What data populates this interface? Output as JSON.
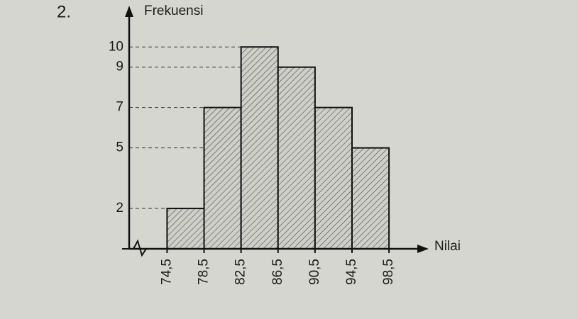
{
  "chart_data": {
    "type": "histogram",
    "annotation": "2.",
    "ylabel": "Frekuensi",
    "xlabel": "Nilai",
    "bins": [
      74.5,
      78.5,
      82.5,
      86.5,
      90.5,
      94.5,
      98.5
    ],
    "values": [
      2,
      7,
      10,
      9,
      7,
      5
    ],
    "xlim": [
      70.4,
      102.1
    ],
    "ylim": [
      0,
      11.8
    ],
    "xticks": [
      {
        "value": 74.5,
        "label": "74,5"
      },
      {
        "value": 78.5,
        "label": "78,5"
      },
      {
        "value": 82.5,
        "label": "82,5"
      },
      {
        "value": 86.5,
        "label": "86,5"
      },
      {
        "value": 90.5,
        "label": "90,5"
      },
      {
        "value": 94.5,
        "label": "94,5"
      },
      {
        "value": 98.5,
        "label": "98,5"
      }
    ],
    "yticks": [
      2,
      5,
      7,
      9,
      10
    ],
    "grid": true,
    "color": "#c9c9c4"
  }
}
